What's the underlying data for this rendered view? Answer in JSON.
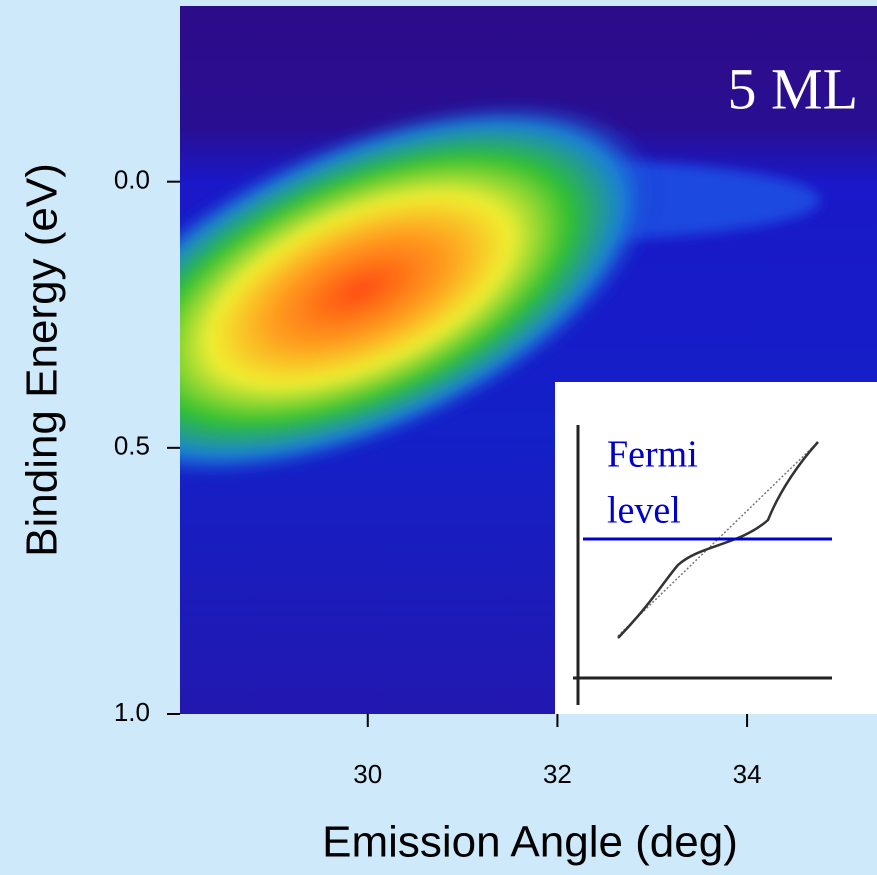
{
  "chart_data": {
    "type": "image",
    "annotation": "5 ML",
    "xlabel": "Emission Angle (deg)",
    "ylabel": "Binding Energy (eV)",
    "xlim": [
      28.02,
      35.37
    ],
    "ylim": [
      -0.33,
      1.0
    ],
    "y_inverted": true,
    "xticks": [
      30,
      32,
      34
    ],
    "yticks": [
      {
        "value": 0,
        "label": "0.0"
      },
      {
        "value": 0.5,
        "label": "0.5"
      },
      {
        "value": 1,
        "label": "1.0"
      }
    ],
    "inset": {
      "label_lines": [
        "Fermi",
        "level"
      ],
      "line_color": "#0000cc"
    }
  }
}
